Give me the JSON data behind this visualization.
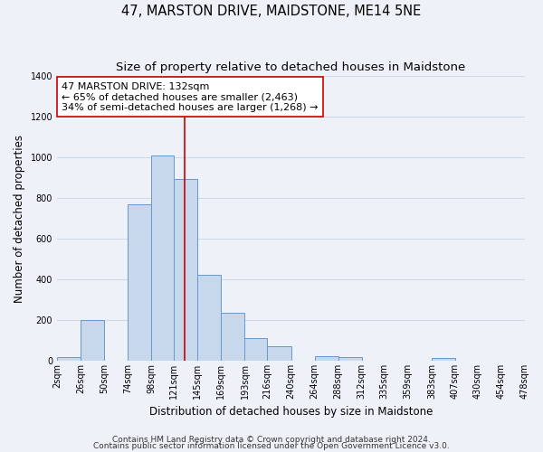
{
  "title": "47, MARSTON DRIVE, MAIDSTONE, ME14 5NE",
  "subtitle": "Size of property relative to detached houses in Maidstone",
  "xlabel": "Distribution of detached houses by size in Maidstone",
  "ylabel": "Number of detached properties",
  "bar_left_edges": [
    2,
    26,
    50,
    74,
    98,
    121,
    145,
    169,
    193,
    216,
    240,
    264,
    288,
    312,
    335,
    359,
    383,
    407,
    430,
    454
  ],
  "bar_widths": [
    24,
    24,
    24,
    24,
    23,
    24,
    24,
    24,
    23,
    24,
    24,
    24,
    24,
    23,
    24,
    24,
    24,
    23,
    24,
    24
  ],
  "bar_heights": [
    20,
    200,
    0,
    770,
    1010,
    895,
    425,
    235,
    110,
    70,
    0,
    25,
    20,
    0,
    0,
    0,
    15,
    0,
    0,
    0
  ],
  "bar_color": "#c8d8ec",
  "bar_edgecolor": "#6699cc",
  "tick_labels": [
    "2sqm",
    "26sqm",
    "50sqm",
    "74sqm",
    "98sqm",
    "121sqm",
    "145sqm",
    "169sqm",
    "193sqm",
    "216sqm",
    "240sqm",
    "264sqm",
    "288sqm",
    "312sqm",
    "335sqm",
    "359sqm",
    "383sqm",
    "407sqm",
    "430sqm",
    "454sqm",
    "478sqm"
  ],
  "vline_x": 132,
  "vline_color": "#cc0000",
  "annotation_text": "47 MARSTON DRIVE: 132sqm\n← 65% of detached houses are smaller (2,463)\n34% of semi-detached houses are larger (1,268) →",
  "annotation_box_color": "#ffffff",
  "annotation_box_edgecolor": "#cc0000",
  "ylim": [
    0,
    1400
  ],
  "yticks": [
    0,
    200,
    400,
    600,
    800,
    1000,
    1200,
    1400
  ],
  "footer1": "Contains HM Land Registry data © Crown copyright and database right 2024.",
  "footer2": "Contains public sector information licensed under the Open Government Licence v3.0.",
  "background_color": "#eef2f8",
  "grid_color": "#d0d8e8",
  "title_fontsize": 10.5,
  "subtitle_fontsize": 9.5,
  "axis_label_fontsize": 8.5,
  "tick_fontsize": 7,
  "annotation_fontsize": 8,
  "footer_fontsize": 6.5
}
